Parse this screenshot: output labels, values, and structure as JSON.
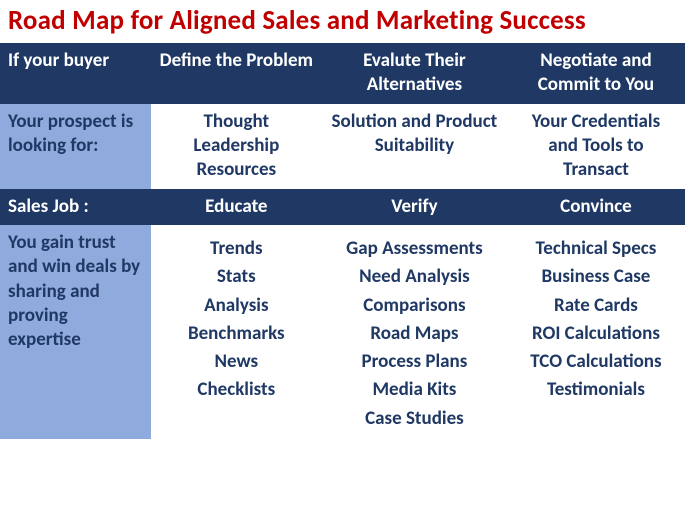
{
  "title": "Road Map for Aligned Sales and Marketing Success",
  "colors": {
    "title": "#c00000",
    "header_dark_bg": "#1f3864",
    "header_dark_fg": "#ffffff",
    "header_light_bg": "#8faadc",
    "header_light_fg": "#1f3864",
    "body_fg": "#1f3864",
    "body_bg": "#ffffff"
  },
  "row_buyer": {
    "label": "If your buyer",
    "c1": "Define the Problem",
    "c2": "Evalute Their Alternatives",
    "c3": "Negotiate and Commit to You"
  },
  "row_prospect": {
    "label": "Your prospect is looking for:",
    "c1": "Thought Leadership Resources",
    "c2": "Solution and Product Suitability",
    "c3": "Your Credentials and Tools to Transact"
  },
  "row_sales": {
    "label": "Sales Job :",
    "c1": "Educate",
    "c2": "Verify",
    "c3": "Convince"
  },
  "row_content": {
    "label": "You gain trust and win deals by sharing and proving expertise",
    "col1": [
      "Trends",
      "Stats",
      "Analysis",
      "Benchmarks",
      "News",
      "Checklists"
    ],
    "col2": [
      "Gap Assessments",
      "Need Analysis",
      "Comparisons",
      "Road Maps",
      "Process Plans",
      "Media Kits",
      "Case Studies"
    ],
    "col3": [
      "Technical Specs",
      "Business Case",
      "Rate Cards",
      "ROI Calculations",
      "TCO Calculations",
      "Testimonials"
    ]
  }
}
